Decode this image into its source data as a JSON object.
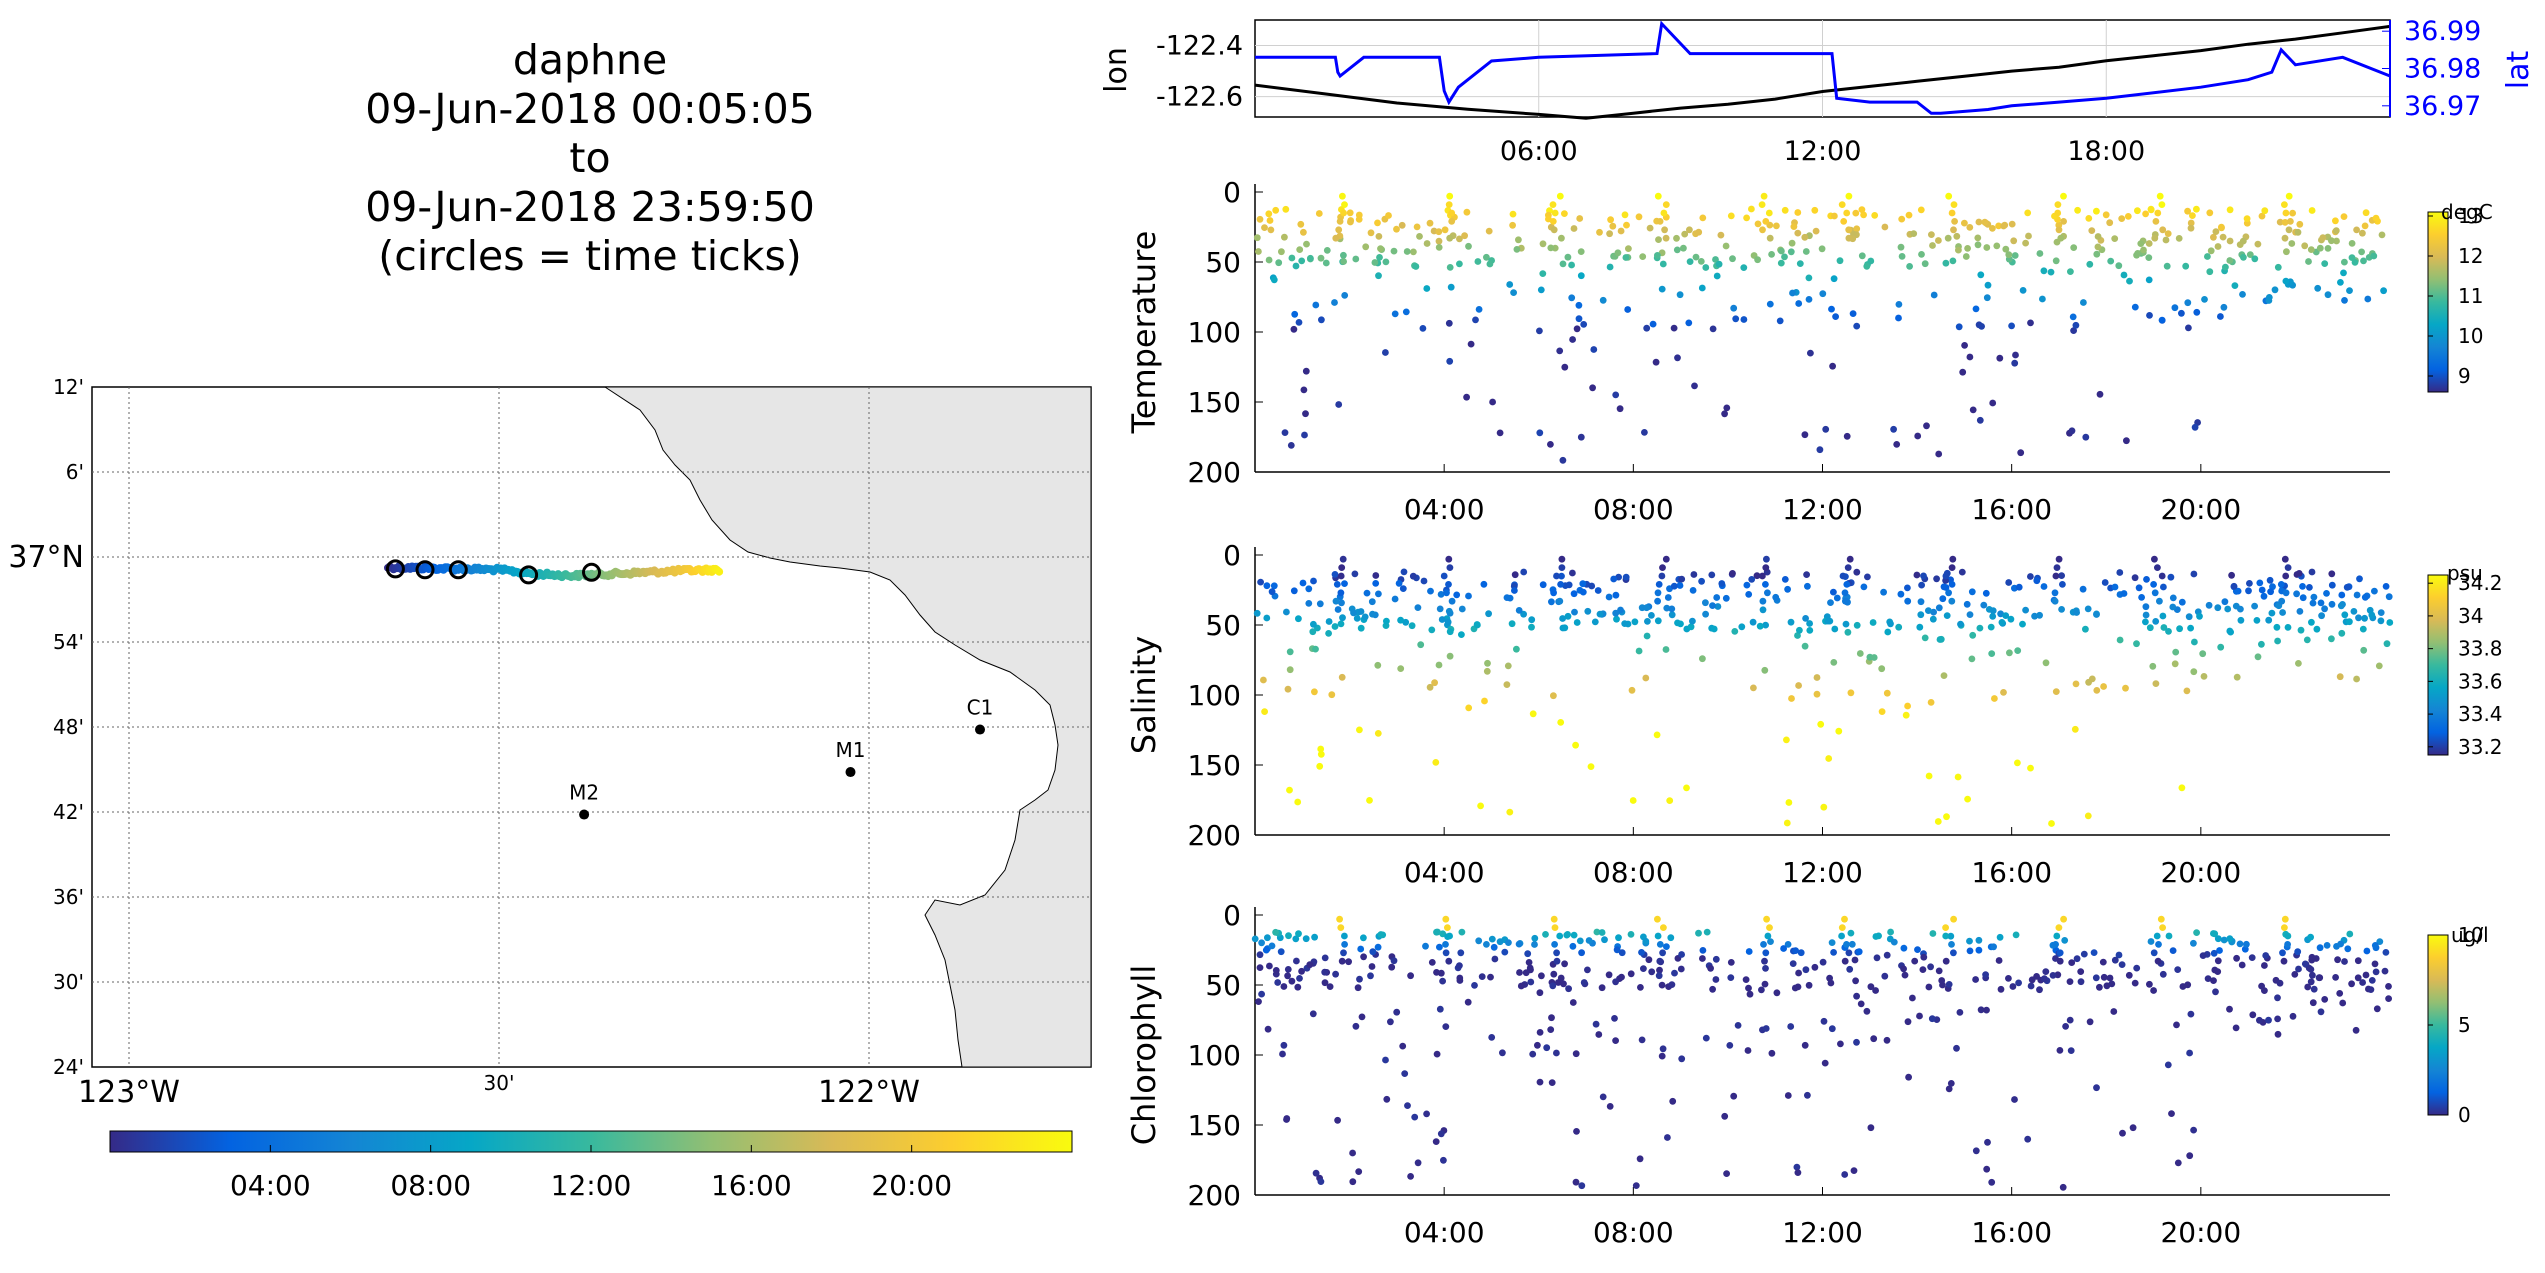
{
  "title": {
    "line1": "daphne",
    "line2": "09-Jun-2018 00:05:05",
    "line3": "to",
    "line4": "09-Jun-2018 23:59:50",
    "line5": "(circles = time ticks)"
  },
  "colors": {
    "track_lon": "#000000",
    "track_lat": "#0000ff",
    "land": "#e6e6e6",
    "parula": [
      "#352a87",
      "#0363e1",
      "#1485d4",
      "#06a7c6",
      "#38b99e",
      "#92bf73",
      "#d9ba56",
      "#fcce2e",
      "#f9fb0e"
    ]
  },
  "chart_data": [
    {
      "id": "map",
      "type": "scatter",
      "lat_ticks": [
        "12'",
        "6'",
        "37°N",
        "54'",
        "48'",
        "42'",
        "36'",
        "30'",
        "24'"
      ],
      "lon_ticks": [
        "123°W",
        "30'",
        "122°W"
      ],
      "xlim": [
        -123.05,
        -121.7
      ],
      "ylim": [
        36.4,
        37.2
      ],
      "stations": [
        {
          "name": "C1",
          "lon": -121.85,
          "lat": 36.797
        },
        {
          "name": "M1",
          "lon": -122.025,
          "lat": 36.747
        },
        {
          "name": "M2",
          "lon": -122.385,
          "lat": 36.697
        }
      ],
      "track": {
        "lon": [
          -122.65,
          -122.6,
          -122.55,
          -122.5,
          -122.45,
          -122.4,
          -122.35,
          -122.3,
          -122.25,
          -122.2
        ],
        "lat": [
          36.988,
          36.987,
          36.986,
          36.985,
          36.98,
          36.978,
          36.98,
          36.982,
          36.984,
          36.985
        ],
        "hours": [
          0.1,
          2.5,
          5,
          7.5,
          10,
          12.5,
          15,
          17.5,
          20,
          23.5
        ]
      },
      "time_circles": [
        {
          "lon": -122.64,
          "lat": 36.986
        },
        {
          "lon": -122.6,
          "lat": 36.985
        },
        {
          "lon": -122.555,
          "lat": 36.985
        },
        {
          "lon": -122.46,
          "lat": 36.979
        },
        {
          "lon": -122.375,
          "lat": 36.982
        }
      ],
      "colorbar": {
        "ticks": [
          "04:00",
          "08:00",
          "12:00",
          "16:00",
          "20:00"
        ],
        "range": [
          0,
          24
        ]
      }
    },
    {
      "id": "lonlat",
      "type": "line",
      "ylabel_left": "lon",
      "ylabel_right": "lat",
      "x_ticks": [
        "06:00",
        "12:00",
        "18:00"
      ],
      "x_tick_hours": [
        6,
        12,
        18
      ],
      "xlim": [
        0,
        24
      ],
      "ylim_left": [
        -122.68,
        -122.3
      ],
      "yticks_left": [
        "-122.4",
        "-122.6"
      ],
      "ylim_right": [
        36.967,
        36.993
      ],
      "yticks_right": [
        "36.99",
        "36.98",
        "36.97"
      ],
      "series": [
        {
          "axis": "left",
          "x": [
            0,
            1.5,
            3,
            4.5,
            6,
            7,
            8,
            9,
            10,
            11,
            12,
            13,
            14,
            15,
            16,
            17,
            18,
            19,
            20,
            21,
            22,
            23,
            24
          ],
          "y": [
            -122.555,
            -122.59,
            -122.625,
            -122.65,
            -122.67,
            -122.685,
            -122.665,
            -122.645,
            -122.63,
            -122.61,
            -122.58,
            -122.56,
            -122.54,
            -122.52,
            -122.5,
            -122.485,
            -122.46,
            -122.44,
            -122.42,
            -122.395,
            -122.375,
            -122.35,
            -122.325
          ]
        },
        {
          "axis": "right",
          "x": [
            0,
            1.7,
            1.75,
            1.8,
            2.3,
            3.9,
            4.0,
            4.1,
            4.3,
            5,
            6,
            8.5,
            8.6,
            9.2,
            10,
            12.2,
            12.3,
            13,
            14,
            14.3,
            14.5,
            15.5,
            16,
            17,
            18,
            20,
            21,
            21.5,
            21.7,
            22,
            23,
            24
          ],
          "y": [
            36.983,
            36.983,
            36.979,
            36.978,
            36.983,
            36.983,
            36.974,
            36.971,
            36.975,
            36.982,
            36.983,
            36.984,
            36.992,
            36.984,
            36.984,
            36.984,
            36.972,
            36.971,
            36.971,
            36.968,
            36.968,
            36.969,
            36.97,
            36.971,
            36.972,
            36.975,
            36.977,
            36.979,
            36.985,
            36.981,
            36.983,
            36.978
          ]
        }
      ]
    },
    {
      "id": "temperature",
      "type": "scatter",
      "ylabel": "Temperature",
      "units": "degC",
      "x_ticks": [
        "04:00",
        "08:00",
        "12:00",
        "16:00",
        "20:00"
      ],
      "x_tick_hours": [
        4,
        8,
        12,
        16,
        20
      ],
      "xlim": [
        0,
        24
      ],
      "ylim": [
        0,
        200
      ],
      "yticks": [
        "0",
        "50",
        "100",
        "150",
        "200"
      ],
      "clim": [
        8.6,
        13.1
      ],
      "cticks": [
        "9",
        "10",
        "11",
        "12",
        "13"
      ]
    },
    {
      "id": "salinity",
      "type": "scatter",
      "ylabel": "Salinity",
      "units": "psu",
      "x_ticks": [
        "04:00",
        "08:00",
        "12:00",
        "16:00",
        "20:00"
      ],
      "x_tick_hours": [
        4,
        8,
        12,
        16,
        20
      ],
      "xlim": [
        0,
        24
      ],
      "ylim": [
        0,
        200
      ],
      "yticks": [
        "0",
        "50",
        "100",
        "150",
        "200"
      ],
      "clim": [
        33.15,
        34.25
      ],
      "cticks": [
        "34.2",
        "34",
        "33.8",
        "33.6",
        "33.4",
        "33.2"
      ]
    },
    {
      "id": "chlorophyll",
      "type": "scatter",
      "ylabel": "Chlorophyll",
      "units": "ug/l",
      "x_ticks": [
        "04:00",
        "08:00",
        "12:00",
        "16:00",
        "20:00"
      ],
      "x_tick_hours": [
        4,
        8,
        12,
        16,
        20
      ],
      "xlim": [
        0,
        24
      ],
      "ylim": [
        0,
        200
      ],
      "yticks": [
        "0",
        "50",
        "100",
        "150",
        "200"
      ],
      "clim": [
        0,
        10
      ],
      "cticks": [
        "10",
        "5",
        "0"
      ]
    }
  ]
}
